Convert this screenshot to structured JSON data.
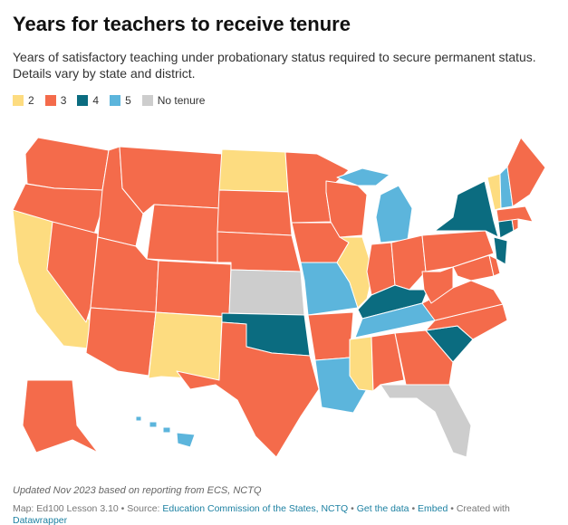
{
  "header": {
    "title": "Years for teachers to receive tenure",
    "subtitle": "Years of satisfactory teaching under probationary status required to secure permanent status. Details vary by state and district."
  },
  "legend": [
    {
      "label": "2",
      "color": "#fddc80"
    },
    {
      "label": "3",
      "color": "#f46b4b"
    },
    {
      "label": "4",
      "color": "#0b6c80"
    },
    {
      "label": "5",
      "color": "#5cb5dc"
    },
    {
      "label": "No tenure",
      "color": "#cdcdcd"
    }
  ],
  "map": {
    "states": {
      "WA": "3",
      "OR": "3",
      "CA": "2",
      "NV": "3",
      "ID": "3",
      "MT": "3",
      "WY": "3",
      "UT": "3",
      "AZ": "3",
      "CO": "3",
      "NM": "2",
      "ND": "2",
      "SD": "3",
      "NE": "3",
      "KS": "No tenure",
      "OK": "4",
      "TX": "3",
      "MN": "3",
      "IA": "3",
      "MO": "5",
      "AR": "3",
      "LA": "5",
      "WI": "3",
      "IL": "2",
      "MI": "5",
      "IN": "3",
      "OH": "3",
      "KY": "4",
      "TN": "5",
      "MS": "2",
      "AL": "3",
      "GA": "3",
      "FL": "No tenure",
      "SC": "4",
      "NC": "3",
      "VA": "3",
      "WV": "3",
      "PA": "3",
      "NY": "4",
      "NJ": "4",
      "MD": "3",
      "DE": "3",
      "CT": "4",
      "RI": "3",
      "MA": "3",
      "VT": "2",
      "NH": "5",
      "ME": "3",
      "AK": "3",
      "HI": "5"
    }
  },
  "footer": {
    "note": "Updated Nov 2023 based on reporting from ECS, NCTQ",
    "credit": "Map: Ed100 Lesson 3.10 • Source: ",
    "source_link": "Education Commission of the States, NCTQ",
    "get_data": "Get the data",
    "embed": "Embed",
    "created": "Created with ",
    "tool": "Datawrapper"
  }
}
